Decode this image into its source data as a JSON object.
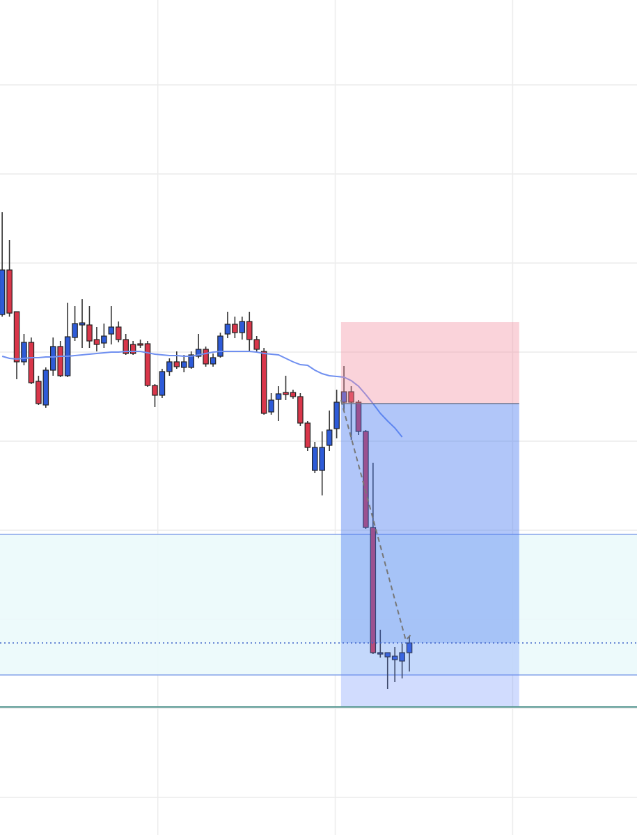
{
  "chart_data": {
    "type": "candlestick",
    "xlim": [
      -0.3,
      87.3
    ],
    "ylim": [
      0,
      120
    ],
    "grid_x": [
      21.4,
      45.8,
      70.2
    ],
    "grid_y": [
      5.4,
      18.2,
      31,
      43.8,
      56.6,
      69.4,
      82.2,
      95,
      107.8
    ],
    "up_color": "#2e5bd8",
    "down_color": "#d9364a",
    "open": [
      74.8,
      81.2,
      75.2,
      68,
      70.8,
      65.2,
      61.8,
      66.8,
      70.2,
      66,
      71.5,
      73.3,
      73.3,
      71.2,
      70.7,
      72,
      73,
      71.2,
      70.5,
      70.6,
      70.6,
      64.6,
      63.2,
      66.6,
      68,
      67.2,
      67.2,
      68.8,
      69.8,
      67.7,
      68.8,
      72,
      73.4,
      72.2,
      73.8,
      71.2,
      69.5,
      60.8,
      62.6,
      63.6,
      63.6,
      63,
      59.2,
      52.4,
      52.4,
      56,
      58.4,
      62.2,
      63.7,
      62.2,
      58,
      44.2,
      26,
      25.6,
      25.2,
      25,
      26.2
    ],
    "high": [
      89.5,
      85.5,
      75.2,
      72,
      71.5,
      66,
      67.2,
      71.5,
      71,
      76.5,
      76,
      77,
      76,
      73,
      73.5,
      76,
      73.8,
      72,
      71,
      71.2,
      71,
      64.8,
      67,
      68.5,
      69.5,
      69,
      69.5,
      72,
      70.2,
      69.2,
      72.2,
      75.2,
      74.5,
      74.5,
      75.2,
      71.7,
      70,
      63.5,
      64.5,
      66,
      64,
      63.5,
      59.5,
      56.5,
      58,
      61,
      64,
      67.4,
      64.5,
      62.5,
      58.2,
      53.5,
      29.5,
      26.2,
      27,
      27.5,
      28.5
    ],
    "low": [
      74.5,
      74.5,
      65.5,
      67.5,
      64.8,
      61.8,
      61.4,
      66,
      65.8,
      65.8,
      71,
      70,
      70,
      69.5,
      70,
      70.5,
      70.8,
      69,
      69,
      70,
      64.4,
      61.5,
      62.8,
      66,
      67,
      66.5,
      67,
      68.5,
      67.3,
      67.3,
      68.6,
      71.4,
      71.4,
      71.2,
      69.5,
      69.5,
      60.4,
      60.4,
      59.5,
      62.5,
      62.7,
      58.8,
      55.2,
      52,
      48.8,
      55.2,
      57,
      61,
      56.8,
      57.5,
      44,
      26,
      25.5,
      21,
      22,
      22.5,
      23.5
    ],
    "close": [
      81.2,
      75,
      68,
      70.8,
      65,
      62,
      66.8,
      70.2,
      66,
      71.6,
      73.5,
      73.6,
      71,
      70.5,
      71.7,
      73,
      71.2,
      69.2,
      69.2,
      70.4,
      64.6,
      63.2,
      66.6,
      68,
      67.3,
      68,
      69,
      69.8,
      67.7,
      68.6,
      71.7,
      73.4,
      72.2,
      73.8,
      71.2,
      69.8,
      60.6,
      62.5,
      63.4,
      63.3,
      63,
      59.2,
      55.7,
      55.7,
      55.7,
      58.2,
      62.2,
      63.7,
      62.2,
      58,
      44.2,
      26.2,
      26.2,
      26.2,
      25.7,
      26.2,
      27.6
    ],
    "moving_average": {
      "color": "#6f8ff0",
      "values": [
        68.8,
        68.5,
        68.4,
        68.5,
        68.6,
        68.6,
        68.7,
        68.7,
        68.8,
        68.8,
        68.9,
        69,
        69.1,
        69.2,
        69.3,
        69.4,
        69.4,
        69.5,
        69.5,
        69.5,
        69.3,
        69.1,
        69,
        68.9,
        68.9,
        68.8,
        68.8,
        69,
        69.2,
        69.4,
        69.5,
        69.5,
        69.5,
        69.5,
        69.5,
        69.4,
        69.2,
        69.1,
        69,
        68.5,
        68,
        67.6,
        67.5,
        66.8,
        66.3,
        66,
        65.9,
        65.8,
        65.3,
        64.5,
        63.3,
        62,
        60.6,
        59.5,
        58.5,
        57.2,
        null
      ]
    },
    "zone": {
      "ylim": [
        23,
        43.2
      ],
      "fill": "#ebf9fb",
      "border": "#85a3ea"
    },
    "current_price": 27.6,
    "support": 18.4,
    "position": {
      "x": [
        46.6,
        71.1
      ],
      "stop": 73.7,
      "entry": 62,
      "target": 18.5
    },
    "projection": {
      "x": [
        46.6,
        55.5,
        56.4
      ],
      "y": [
        62.5,
        28,
        29
      ]
    }
  }
}
